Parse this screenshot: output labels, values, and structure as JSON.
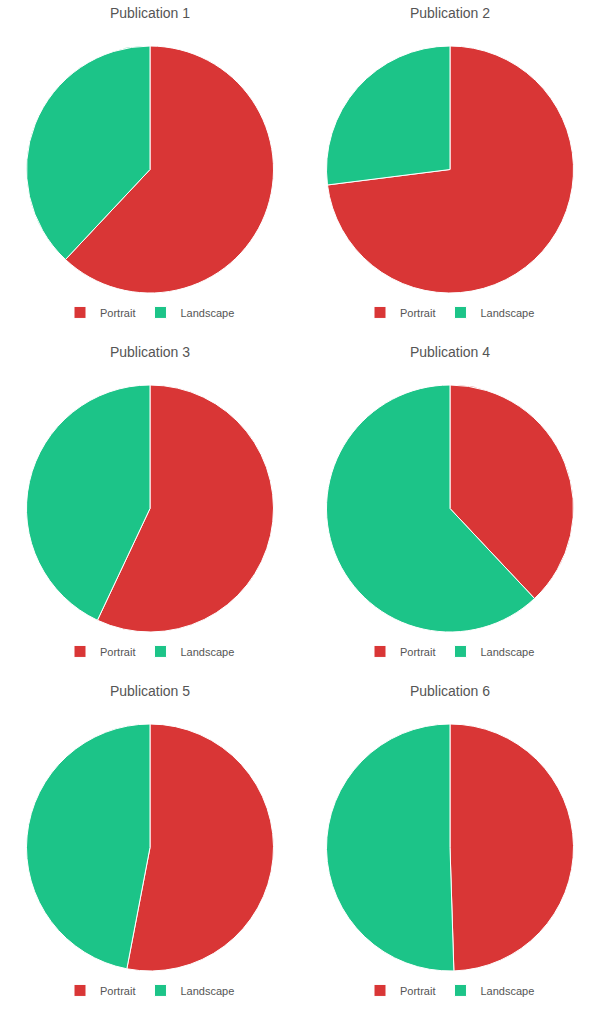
{
  "chart_data": [
    {
      "type": "pie",
      "title": "Publication 1",
      "categories": [
        "Portrait",
        "Landscape"
      ],
      "values": [
        62,
        38
      ],
      "colors": [
        "#d93636",
        "#1cc488"
      ],
      "legend": "bottom"
    },
    {
      "type": "pie",
      "title": "Publication 2",
      "categories": [
        "Portrait",
        "Landscape"
      ],
      "values": [
        73,
        27
      ],
      "colors": [
        "#d93636",
        "#1cc488"
      ],
      "legend": "bottom"
    },
    {
      "type": "pie",
      "title": "Publication 3",
      "categories": [
        "Portrait",
        "Landscape"
      ],
      "values": [
        57,
        43
      ],
      "colors": [
        "#d93636",
        "#1cc488"
      ],
      "legend": "bottom"
    },
    {
      "type": "pie",
      "title": "Publication 4",
      "categories": [
        "Portrait",
        "Landscape"
      ],
      "values": [
        38,
        62
      ],
      "colors": [
        "#d93636",
        "#1cc488"
      ],
      "legend": "bottom"
    },
    {
      "type": "pie",
      "title": "Publication 5",
      "categories": [
        "Portrait",
        "Landscape"
      ],
      "values": [
        53,
        47
      ],
      "colors": [
        "#d93636",
        "#1cc488"
      ],
      "legend": "bottom"
    },
    {
      "type": "pie",
      "title": "Publication 6",
      "categories": [
        "Portrait",
        "Landscape"
      ],
      "values": [
        49.5,
        50.5
      ],
      "colors": [
        "#d93636",
        "#1cc488"
      ],
      "legend": "bottom"
    }
  ]
}
